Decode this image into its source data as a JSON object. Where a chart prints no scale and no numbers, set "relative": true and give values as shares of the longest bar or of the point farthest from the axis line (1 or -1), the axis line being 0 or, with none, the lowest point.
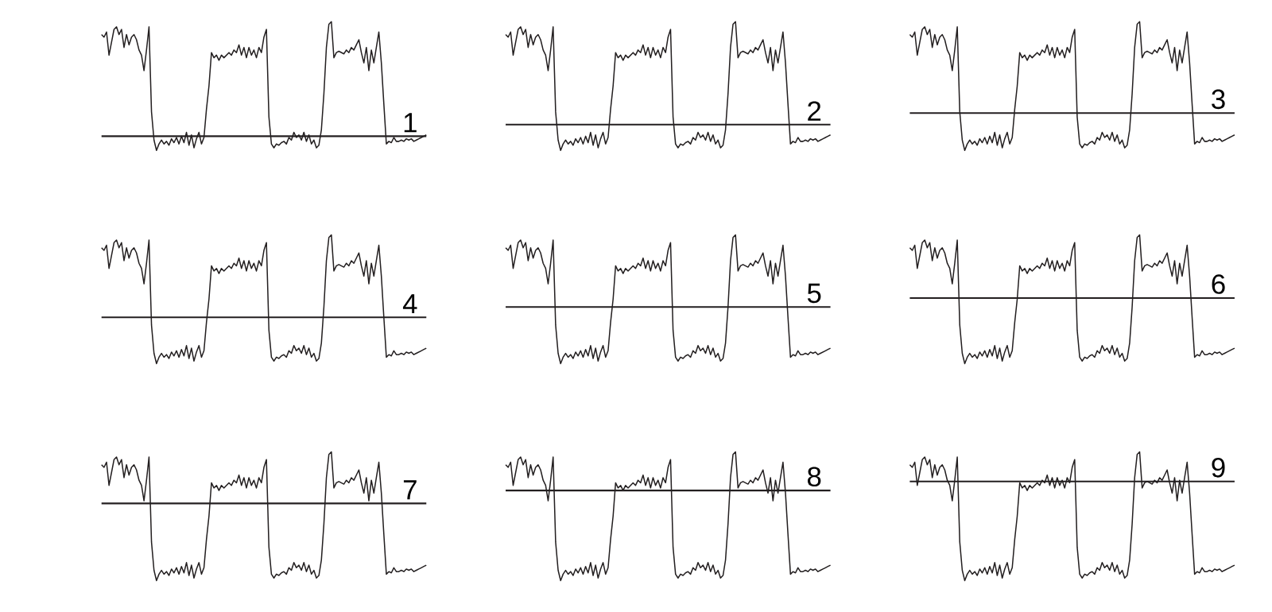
{
  "chart_data": [
    {
      "type": "line",
      "title": "1",
      "relative": true,
      "categories": [
        null,
        null,
        null,
        null,
        null,
        null,
        null,
        null,
        null,
        null,
        null,
        null,
        null,
        null,
        null,
        null,
        null,
        null,
        null,
        null,
        null,
        null,
        null,
        null,
        null,
        null,
        null,
        null,
        null,
        null,
        null,
        null,
        null,
        null,
        null,
        null,
        null,
        null,
        null,
        null,
        null,
        null,
        null,
        null,
        null,
        null,
        null,
        null,
        null,
        null,
        null,
        null,
        null,
        null,
        null,
        null,
        null,
        null,
        null,
        null,
        null,
        null,
        null,
        null,
        null,
        null,
        null,
        null,
        null,
        null,
        null,
        null,
        null,
        null,
        null,
        null,
        null,
        null,
        null,
        null,
        null,
        null,
        null,
        null,
        null,
        null,
        null,
        null,
        null,
        null,
        null,
        null,
        null,
        null,
        null,
        null,
        null,
        null,
        null,
        null,
        null,
        null,
        null,
        null,
        null,
        null,
        null,
        null,
        null,
        null,
        null,
        null,
        null,
        null,
        null,
        null,
        null,
        null,
        null,
        null,
        null,
        null,
        null,
        null,
        null,
        null,
        null,
        null,
        null,
        null,
        null
      ],
      "color": "#231f20",
      "values": [
        0.9,
        0.88,
        0.92,
        0.74,
        0.84,
        0.94,
        0.96,
        0.9,
        0.94,
        0.8,
        0.9,
        0.82,
        0.88,
        0.9,
        0.86,
        0.78,
        0.74,
        0.62,
        0.78,
        0.96,
        0.3,
        0.08,
        0.0,
        0.05,
        0.08,
        0.05,
        0.07,
        0.04,
        0.09,
        0.06,
        0.1,
        0.05,
        0.11,
        0.06,
        0.14,
        0.04,
        0.12,
        0.02,
        0.09,
        0.14,
        0.05,
        0.1,
        0.32,
        0.5,
        0.76,
        0.72,
        0.74,
        0.7,
        0.74,
        0.72,
        0.74,
        0.76,
        0.74,
        0.78,
        0.76,
        0.82,
        0.74,
        0.8,
        0.72,
        0.8,
        0.74,
        0.78,
        0.72,
        0.8,
        0.76,
        0.88,
        0.94,
        0.26,
        0.05,
        0.02,
        0.05,
        0.04,
        0.06,
        0.07,
        0.05,
        0.1,
        0.08,
        0.14,
        0.1,
        0.12,
        0.08,
        0.14,
        0.07,
        0.12,
        0.05,
        0.08,
        0.02,
        0.04,
        0.16,
        0.44,
        0.8,
        0.98,
        1.0,
        0.72,
        0.76,
        0.77,
        0.76,
        0.75,
        0.78,
        0.76,
        0.8,
        0.78,
        0.82,
        0.86,
        0.76,
        0.68,
        0.8,
        0.62,
        0.78,
        0.68,
        0.8,
        0.92,
        0.68,
        0.36,
        0.05,
        0.07,
        0.06,
        0.1,
        0.07,
        0.07,
        0.08,
        0.07,
        0.09,
        0.08,
        0.09,
        0.07,
        0.08,
        0.09,
        0.1,
        0.11,
        0.12
      ],
      "ref_lines": [
        {
          "axis": "y",
          "value": 0.11,
          "color": "#231f20"
        }
      ]
    },
    {
      "type": "line",
      "title": "2",
      "relative": true,
      "categories": [
        null,
        null,
        null,
        null,
        null,
        null,
        null,
        null,
        null,
        null,
        null,
        null,
        null,
        null,
        null,
        null,
        null,
        null,
        null,
        null,
        null,
        null,
        null,
        null,
        null,
        null,
        null,
        null,
        null,
        null,
        null,
        null,
        null,
        null,
        null,
        null,
        null,
        null,
        null,
        null,
        null,
        null,
        null,
        null,
        null,
        null,
        null,
        null,
        null,
        null,
        null,
        null,
        null,
        null,
        null,
        null,
        null,
        null,
        null,
        null,
        null,
        null,
        null,
        null,
        null,
        null,
        null,
        null,
        null,
        null,
        null,
        null,
        null,
        null,
        null,
        null,
        null,
        null,
        null,
        null,
        null,
        null,
        null,
        null,
        null,
        null,
        null,
        null,
        null,
        null,
        null,
        null,
        null,
        null,
        null,
        null,
        null,
        null,
        null,
        null,
        null,
        null,
        null,
        null,
        null,
        null,
        null,
        null,
        null,
        null,
        null,
        null,
        null,
        null,
        null,
        null,
        null,
        null,
        null,
        null,
        null,
        null,
        null,
        null,
        null,
        null,
        null,
        null,
        null,
        null,
        null
      ],
      "color": "#231f20",
      "values": [
        0.9,
        0.88,
        0.92,
        0.74,
        0.84,
        0.94,
        0.96,
        0.9,
        0.94,
        0.8,
        0.9,
        0.82,
        0.88,
        0.9,
        0.86,
        0.78,
        0.74,
        0.62,
        0.78,
        0.96,
        0.3,
        0.08,
        0.0,
        0.05,
        0.08,
        0.05,
        0.07,
        0.04,
        0.09,
        0.06,
        0.1,
        0.05,
        0.11,
        0.06,
        0.14,
        0.04,
        0.12,
        0.02,
        0.09,
        0.14,
        0.05,
        0.1,
        0.32,
        0.5,
        0.76,
        0.72,
        0.74,
        0.7,
        0.74,
        0.72,
        0.74,
        0.76,
        0.74,
        0.78,
        0.76,
        0.82,
        0.74,
        0.8,
        0.72,
        0.8,
        0.74,
        0.78,
        0.72,
        0.8,
        0.76,
        0.88,
        0.94,
        0.26,
        0.05,
        0.02,
        0.05,
        0.04,
        0.06,
        0.07,
        0.05,
        0.1,
        0.08,
        0.14,
        0.1,
        0.12,
        0.08,
        0.14,
        0.07,
        0.12,
        0.05,
        0.08,
        0.02,
        0.04,
        0.16,
        0.44,
        0.8,
        0.98,
        1.0,
        0.72,
        0.76,
        0.77,
        0.76,
        0.75,
        0.78,
        0.76,
        0.8,
        0.78,
        0.82,
        0.86,
        0.76,
        0.68,
        0.8,
        0.62,
        0.78,
        0.68,
        0.8,
        0.92,
        0.68,
        0.36,
        0.05,
        0.07,
        0.06,
        0.1,
        0.07,
        0.07,
        0.08,
        0.07,
        0.09,
        0.08,
        0.09,
        0.07,
        0.08,
        0.09,
        0.1,
        0.11,
        0.12
      ],
      "ref_lines": [
        {
          "axis": "y",
          "value": 0.2,
          "color": "#231f20"
        }
      ]
    },
    {
      "type": "line",
      "title": "3",
      "relative": true,
      "categories": [
        null,
        null,
        null,
        null,
        null,
        null,
        null,
        null,
        null,
        null,
        null,
        null,
        null,
        null,
        null,
        null,
        null,
        null,
        null,
        null,
        null,
        null,
        null,
        null,
        null,
        null,
        null,
        null,
        null,
        null,
        null,
        null,
        null,
        null,
        null,
        null,
        null,
        null,
        null,
        null,
        null,
        null,
        null,
        null,
        null,
        null,
        null,
        null,
        null,
        null,
        null,
        null,
        null,
        null,
        null,
        null,
        null,
        null,
        null,
        null,
        null,
        null,
        null,
        null,
        null,
        null,
        null,
        null,
        null,
        null,
        null,
        null,
        null,
        null,
        null,
        null,
        null,
        null,
        null,
        null,
        null,
        null,
        null,
        null,
        null,
        null,
        null,
        null,
        null,
        null,
        null,
        null,
        null,
        null,
        null,
        null,
        null,
        null,
        null,
        null,
        null,
        null,
        null,
        null,
        null,
        null,
        null,
        null,
        null,
        null,
        null,
        null,
        null,
        null,
        null,
        null,
        null,
        null,
        null,
        null,
        null,
        null,
        null,
        null,
        null,
        null,
        null,
        null,
        null,
        null,
        null
      ],
      "color": "#231f20",
      "values": [
        0.9,
        0.88,
        0.92,
        0.74,
        0.84,
        0.94,
        0.96,
        0.9,
        0.94,
        0.8,
        0.9,
        0.82,
        0.88,
        0.9,
        0.86,
        0.78,
        0.74,
        0.62,
        0.78,
        0.96,
        0.3,
        0.08,
        0.0,
        0.05,
        0.08,
        0.05,
        0.07,
        0.04,
        0.09,
        0.06,
        0.1,
        0.05,
        0.11,
        0.06,
        0.14,
        0.04,
        0.12,
        0.02,
        0.09,
        0.14,
        0.05,
        0.1,
        0.32,
        0.5,
        0.76,
        0.72,
        0.74,
        0.7,
        0.74,
        0.72,
        0.74,
        0.76,
        0.74,
        0.78,
        0.76,
        0.82,
        0.74,
        0.8,
        0.72,
        0.8,
        0.74,
        0.78,
        0.72,
        0.8,
        0.76,
        0.88,
        0.94,
        0.26,
        0.05,
        0.02,
        0.05,
        0.04,
        0.06,
        0.07,
        0.05,
        0.1,
        0.08,
        0.14,
        0.1,
        0.12,
        0.08,
        0.14,
        0.07,
        0.12,
        0.05,
        0.08,
        0.02,
        0.04,
        0.16,
        0.44,
        0.8,
        0.98,
        1.0,
        0.72,
        0.76,
        0.77,
        0.76,
        0.75,
        0.78,
        0.76,
        0.8,
        0.78,
        0.82,
        0.86,
        0.76,
        0.68,
        0.8,
        0.62,
        0.78,
        0.68,
        0.8,
        0.92,
        0.68,
        0.36,
        0.05,
        0.07,
        0.06,
        0.1,
        0.07,
        0.07,
        0.08,
        0.07,
        0.09,
        0.08,
        0.09,
        0.07,
        0.08,
        0.09,
        0.1,
        0.11,
        0.12
      ],
      "ref_lines": [
        {
          "axis": "y",
          "value": 0.29,
          "color": "#231f20"
        }
      ]
    },
    {
      "type": "line",
      "title": "4",
      "relative": true,
      "categories": [
        null,
        null,
        null,
        null,
        null,
        null,
        null,
        null,
        null,
        null,
        null,
        null,
        null,
        null,
        null,
        null,
        null,
        null,
        null,
        null,
        null,
        null,
        null,
        null,
        null,
        null,
        null,
        null,
        null,
        null,
        null,
        null,
        null,
        null,
        null,
        null,
        null,
        null,
        null,
        null,
        null,
        null,
        null,
        null,
        null,
        null,
        null,
        null,
        null,
        null,
        null,
        null,
        null,
        null,
        null,
        null,
        null,
        null,
        null,
        null,
        null,
        null,
        null,
        null,
        null,
        null,
        null,
        null,
        null,
        null,
        null,
        null,
        null,
        null,
        null,
        null,
        null,
        null,
        null,
        null,
        null,
        null,
        null,
        null,
        null,
        null,
        null,
        null,
        null,
        null,
        null,
        null,
        null,
        null,
        null,
        null,
        null,
        null,
        null,
        null,
        null,
        null,
        null,
        null,
        null,
        null,
        null,
        null,
        null,
        null,
        null,
        null,
        null,
        null,
        null,
        null,
        null,
        null,
        null,
        null,
        null,
        null,
        null,
        null,
        null,
        null,
        null,
        null,
        null,
        null,
        null
      ],
      "color": "#231f20",
      "values": [
        0.9,
        0.88,
        0.92,
        0.74,
        0.84,
        0.94,
        0.96,
        0.9,
        0.94,
        0.8,
        0.9,
        0.82,
        0.88,
        0.9,
        0.86,
        0.78,
        0.74,
        0.62,
        0.78,
        0.96,
        0.3,
        0.08,
        0.0,
        0.05,
        0.08,
        0.05,
        0.07,
        0.04,
        0.09,
        0.06,
        0.1,
        0.05,
        0.11,
        0.06,
        0.14,
        0.04,
        0.12,
        0.02,
        0.09,
        0.14,
        0.05,
        0.1,
        0.32,
        0.5,
        0.76,
        0.72,
        0.74,
        0.7,
        0.74,
        0.72,
        0.74,
        0.76,
        0.74,
        0.78,
        0.76,
        0.82,
        0.74,
        0.8,
        0.72,
        0.8,
        0.74,
        0.78,
        0.72,
        0.8,
        0.76,
        0.88,
        0.94,
        0.26,
        0.05,
        0.02,
        0.05,
        0.04,
        0.06,
        0.07,
        0.05,
        0.1,
        0.08,
        0.14,
        0.1,
        0.12,
        0.08,
        0.14,
        0.07,
        0.12,
        0.05,
        0.08,
        0.02,
        0.04,
        0.16,
        0.44,
        0.8,
        0.98,
        1.0,
        0.72,
        0.76,
        0.77,
        0.76,
        0.75,
        0.78,
        0.76,
        0.8,
        0.78,
        0.82,
        0.86,
        0.76,
        0.68,
        0.8,
        0.62,
        0.78,
        0.68,
        0.8,
        0.92,
        0.68,
        0.36,
        0.05,
        0.07,
        0.06,
        0.1,
        0.07,
        0.07,
        0.08,
        0.07,
        0.09,
        0.08,
        0.09,
        0.07,
        0.08,
        0.09,
        0.1,
        0.11,
        0.12
      ],
      "ref_lines": [
        {
          "axis": "y",
          "value": 0.36,
          "color": "#231f20"
        }
      ]
    },
    {
      "type": "line",
      "title": "5",
      "relative": true,
      "categories": [
        null,
        null,
        null,
        null,
        null,
        null,
        null,
        null,
        null,
        null,
        null,
        null,
        null,
        null,
        null,
        null,
        null,
        null,
        null,
        null,
        null,
        null,
        null,
        null,
        null,
        null,
        null,
        null,
        null,
        null,
        null,
        null,
        null,
        null,
        null,
        null,
        null,
        null,
        null,
        null,
        null,
        null,
        null,
        null,
        null,
        null,
        null,
        null,
        null,
        null,
        null,
        null,
        null,
        null,
        null,
        null,
        null,
        null,
        null,
        null,
        null,
        null,
        null,
        null,
        null,
        null,
        null,
        null,
        null,
        null,
        null,
        null,
        null,
        null,
        null,
        null,
        null,
        null,
        null,
        null,
        null,
        null,
        null,
        null,
        null,
        null,
        null,
        null,
        null,
        null,
        null,
        null,
        null,
        null,
        null,
        null,
        null,
        null,
        null,
        null,
        null,
        null,
        null,
        null,
        null,
        null,
        null,
        null,
        null,
        null,
        null,
        null,
        null,
        null,
        null,
        null,
        null,
        null,
        null,
        null,
        null,
        null,
        null,
        null,
        null,
        null,
        null,
        null,
        null,
        null,
        null
      ],
      "color": "#231f20",
      "values": [
        0.9,
        0.88,
        0.92,
        0.74,
        0.84,
        0.94,
        0.96,
        0.9,
        0.94,
        0.8,
        0.9,
        0.82,
        0.88,
        0.9,
        0.86,
        0.78,
        0.74,
        0.62,
        0.78,
        0.96,
        0.3,
        0.08,
        0.0,
        0.05,
        0.08,
        0.05,
        0.07,
        0.04,
        0.09,
        0.06,
        0.1,
        0.05,
        0.11,
        0.06,
        0.14,
        0.04,
        0.12,
        0.02,
        0.09,
        0.14,
        0.05,
        0.1,
        0.32,
        0.5,
        0.76,
        0.72,
        0.74,
        0.7,
        0.74,
        0.72,
        0.74,
        0.76,
        0.74,
        0.78,
        0.76,
        0.82,
        0.74,
        0.8,
        0.72,
        0.8,
        0.74,
        0.78,
        0.72,
        0.8,
        0.76,
        0.88,
        0.94,
        0.26,
        0.05,
        0.02,
        0.05,
        0.04,
        0.06,
        0.07,
        0.05,
        0.1,
        0.08,
        0.14,
        0.1,
        0.12,
        0.08,
        0.14,
        0.07,
        0.12,
        0.05,
        0.08,
        0.02,
        0.04,
        0.16,
        0.44,
        0.8,
        0.98,
        1.0,
        0.72,
        0.76,
        0.77,
        0.76,
        0.75,
        0.78,
        0.76,
        0.8,
        0.78,
        0.82,
        0.86,
        0.76,
        0.68,
        0.8,
        0.62,
        0.78,
        0.68,
        0.8,
        0.92,
        0.68,
        0.36,
        0.05,
        0.07,
        0.06,
        0.1,
        0.07,
        0.07,
        0.08,
        0.07,
        0.09,
        0.08,
        0.09,
        0.07,
        0.08,
        0.09,
        0.1,
        0.11,
        0.12
      ],
      "ref_lines": [
        {
          "axis": "y",
          "value": 0.44,
          "color": "#231f20"
        }
      ]
    },
    {
      "type": "line",
      "title": "6",
      "relative": true,
      "categories": [
        null,
        null,
        null,
        null,
        null,
        null,
        null,
        null,
        null,
        null,
        null,
        null,
        null,
        null,
        null,
        null,
        null,
        null,
        null,
        null,
        null,
        null,
        null,
        null,
        null,
        null,
        null,
        null,
        null,
        null,
        null,
        null,
        null,
        null,
        null,
        null,
        null,
        null,
        null,
        null,
        null,
        null,
        null,
        null,
        null,
        null,
        null,
        null,
        null,
        null,
        null,
        null,
        null,
        null,
        null,
        null,
        null,
        null,
        null,
        null,
        null,
        null,
        null,
        null,
        null,
        null,
        null,
        null,
        null,
        null,
        null,
        null,
        null,
        null,
        null,
        null,
        null,
        null,
        null,
        null,
        null,
        null,
        null,
        null,
        null,
        null,
        null,
        null,
        null,
        null,
        null,
        null,
        null,
        null,
        null,
        null,
        null,
        null,
        null,
        null,
        null,
        null,
        null,
        null,
        null,
        null,
        null,
        null,
        null,
        null,
        null,
        null,
        null,
        null,
        null,
        null,
        null,
        null,
        null,
        null,
        null,
        null,
        null,
        null,
        null,
        null,
        null,
        null,
        null,
        null,
        null
      ],
      "color": "#231f20",
      "values": [
        0.9,
        0.88,
        0.92,
        0.74,
        0.84,
        0.94,
        0.96,
        0.9,
        0.94,
        0.8,
        0.9,
        0.82,
        0.88,
        0.9,
        0.86,
        0.78,
        0.74,
        0.62,
        0.78,
        0.96,
        0.3,
        0.08,
        0.0,
        0.05,
        0.08,
        0.05,
        0.07,
        0.04,
        0.09,
        0.06,
        0.1,
        0.05,
        0.11,
        0.06,
        0.14,
        0.04,
        0.12,
        0.02,
        0.09,
        0.14,
        0.05,
        0.1,
        0.32,
        0.5,
        0.76,
        0.72,
        0.74,
        0.7,
        0.74,
        0.72,
        0.74,
        0.76,
        0.74,
        0.78,
        0.76,
        0.82,
        0.74,
        0.8,
        0.72,
        0.8,
        0.74,
        0.78,
        0.72,
        0.8,
        0.76,
        0.88,
        0.94,
        0.26,
        0.05,
        0.02,
        0.05,
        0.04,
        0.06,
        0.07,
        0.05,
        0.1,
        0.08,
        0.14,
        0.1,
        0.12,
        0.08,
        0.14,
        0.07,
        0.12,
        0.05,
        0.08,
        0.02,
        0.04,
        0.16,
        0.44,
        0.8,
        0.98,
        1.0,
        0.72,
        0.76,
        0.77,
        0.76,
        0.75,
        0.78,
        0.76,
        0.8,
        0.78,
        0.82,
        0.86,
        0.76,
        0.68,
        0.8,
        0.62,
        0.78,
        0.68,
        0.8,
        0.92,
        0.68,
        0.36,
        0.05,
        0.07,
        0.06,
        0.1,
        0.07,
        0.07,
        0.08,
        0.07,
        0.09,
        0.08,
        0.09,
        0.07,
        0.08,
        0.09,
        0.1,
        0.11,
        0.12
      ],
      "ref_lines": [
        {
          "axis": "y",
          "value": 0.51,
          "color": "#231f20"
        }
      ]
    },
    {
      "type": "line",
      "title": "7",
      "relative": true,
      "categories": [
        null,
        null,
        null,
        null,
        null,
        null,
        null,
        null,
        null,
        null,
        null,
        null,
        null,
        null,
        null,
        null,
        null,
        null,
        null,
        null,
        null,
        null,
        null,
        null,
        null,
        null,
        null,
        null,
        null,
        null,
        null,
        null,
        null,
        null,
        null,
        null,
        null,
        null,
        null,
        null,
        null,
        null,
        null,
        null,
        null,
        null,
        null,
        null,
        null,
        null,
        null,
        null,
        null,
        null,
        null,
        null,
        null,
        null,
        null,
        null,
        null,
        null,
        null,
        null,
        null,
        null,
        null,
        null,
        null,
        null,
        null,
        null,
        null,
        null,
        null,
        null,
        null,
        null,
        null,
        null,
        null,
        null,
        null,
        null,
        null,
        null,
        null,
        null,
        null,
        null,
        null,
        null,
        null,
        null,
        null,
        null,
        null,
        null,
        null,
        null,
        null,
        null,
        null,
        null,
        null,
        null,
        null,
        null,
        null,
        null,
        null,
        null,
        null,
        null,
        null,
        null,
        null,
        null,
        null,
        null,
        null,
        null,
        null,
        null,
        null,
        null,
        null,
        null,
        null,
        null,
        null
      ],
      "color": "#231f20",
      "values": [
        0.9,
        0.88,
        0.92,
        0.74,
        0.84,
        0.94,
        0.96,
        0.9,
        0.94,
        0.8,
        0.9,
        0.82,
        0.88,
        0.9,
        0.86,
        0.78,
        0.74,
        0.62,
        0.78,
        0.96,
        0.3,
        0.08,
        0.0,
        0.05,
        0.08,
        0.05,
        0.07,
        0.04,
        0.09,
        0.06,
        0.1,
        0.05,
        0.11,
        0.06,
        0.14,
        0.04,
        0.12,
        0.02,
        0.09,
        0.14,
        0.05,
        0.1,
        0.32,
        0.5,
        0.76,
        0.72,
        0.74,
        0.7,
        0.74,
        0.72,
        0.74,
        0.76,
        0.74,
        0.78,
        0.76,
        0.82,
        0.74,
        0.8,
        0.72,
        0.8,
        0.74,
        0.78,
        0.72,
        0.8,
        0.76,
        0.88,
        0.94,
        0.26,
        0.05,
        0.02,
        0.05,
        0.04,
        0.06,
        0.07,
        0.05,
        0.1,
        0.08,
        0.14,
        0.1,
        0.12,
        0.08,
        0.14,
        0.07,
        0.12,
        0.05,
        0.08,
        0.02,
        0.04,
        0.16,
        0.44,
        0.8,
        0.98,
        1.0,
        0.72,
        0.76,
        0.77,
        0.76,
        0.75,
        0.78,
        0.76,
        0.8,
        0.78,
        0.82,
        0.86,
        0.76,
        0.68,
        0.8,
        0.62,
        0.78,
        0.68,
        0.8,
        0.92,
        0.68,
        0.36,
        0.05,
        0.07,
        0.06,
        0.1,
        0.07,
        0.07,
        0.08,
        0.07,
        0.09,
        0.08,
        0.09,
        0.07,
        0.08,
        0.09,
        0.1,
        0.11,
        0.12
      ],
      "ref_lines": [
        {
          "axis": "y",
          "value": 0.6,
          "color": "#231f20"
        }
      ]
    },
    {
      "type": "line",
      "title": "8",
      "relative": true,
      "categories": [
        null,
        null,
        null,
        null,
        null,
        null,
        null,
        null,
        null,
        null,
        null,
        null,
        null,
        null,
        null,
        null,
        null,
        null,
        null,
        null,
        null,
        null,
        null,
        null,
        null,
        null,
        null,
        null,
        null,
        null,
        null,
        null,
        null,
        null,
        null,
        null,
        null,
        null,
        null,
        null,
        null,
        null,
        null,
        null,
        null,
        null,
        null,
        null,
        null,
        null,
        null,
        null,
        null,
        null,
        null,
        null,
        null,
        null,
        null,
        null,
        null,
        null,
        null,
        null,
        null,
        null,
        null,
        null,
        null,
        null,
        null,
        null,
        null,
        null,
        null,
        null,
        null,
        null,
        null,
        null,
        null,
        null,
        null,
        null,
        null,
        null,
        null,
        null,
        null,
        null,
        null,
        null,
        null,
        null,
        null,
        null,
        null,
        null,
        null,
        null,
        null,
        null,
        null,
        null,
        null,
        null,
        null,
        null,
        null,
        null,
        null,
        null,
        null,
        null,
        null,
        null,
        null,
        null,
        null,
        null,
        null,
        null,
        null,
        null,
        null,
        null,
        null,
        null,
        null,
        null,
        null
      ],
      "color": "#231f20",
      "values": [
        0.9,
        0.88,
        0.92,
        0.74,
        0.84,
        0.94,
        0.96,
        0.9,
        0.94,
        0.8,
        0.9,
        0.82,
        0.88,
        0.9,
        0.86,
        0.78,
        0.74,
        0.62,
        0.78,
        0.96,
        0.3,
        0.08,
        0.0,
        0.05,
        0.08,
        0.05,
        0.07,
        0.04,
        0.09,
        0.06,
        0.1,
        0.05,
        0.11,
        0.06,
        0.14,
        0.04,
        0.12,
        0.02,
        0.09,
        0.14,
        0.05,
        0.1,
        0.32,
        0.5,
        0.76,
        0.72,
        0.74,
        0.7,
        0.74,
        0.72,
        0.74,
        0.76,
        0.74,
        0.78,
        0.76,
        0.82,
        0.74,
        0.8,
        0.72,
        0.8,
        0.74,
        0.78,
        0.72,
        0.8,
        0.76,
        0.88,
        0.94,
        0.26,
        0.05,
        0.02,
        0.05,
        0.04,
        0.06,
        0.07,
        0.05,
        0.1,
        0.08,
        0.14,
        0.1,
        0.12,
        0.08,
        0.14,
        0.07,
        0.12,
        0.05,
        0.08,
        0.02,
        0.04,
        0.16,
        0.44,
        0.8,
        0.98,
        1.0,
        0.72,
        0.76,
        0.77,
        0.76,
        0.75,
        0.78,
        0.76,
        0.8,
        0.78,
        0.82,
        0.86,
        0.76,
        0.68,
        0.8,
        0.62,
        0.78,
        0.68,
        0.8,
        0.92,
        0.68,
        0.36,
        0.05,
        0.07,
        0.06,
        0.1,
        0.07,
        0.07,
        0.08,
        0.07,
        0.09,
        0.08,
        0.09,
        0.07,
        0.08,
        0.09,
        0.1,
        0.11,
        0.12
      ],
      "ref_lines": [
        {
          "axis": "y",
          "value": 0.7,
          "color": "#231f20"
        }
      ]
    },
    {
      "type": "line",
      "title": "9",
      "relative": true,
      "categories": [
        null,
        null,
        null,
        null,
        null,
        null,
        null,
        null,
        null,
        null,
        null,
        null,
        null,
        null,
        null,
        null,
        null,
        null,
        null,
        null,
        null,
        null,
        null,
        null,
        null,
        null,
        null,
        null,
        null,
        null,
        null,
        null,
        null,
        null,
        null,
        null,
        null,
        null,
        null,
        null,
        null,
        null,
        null,
        null,
        null,
        null,
        null,
        null,
        null,
        null,
        null,
        null,
        null,
        null,
        null,
        null,
        null,
        null,
        null,
        null,
        null,
        null,
        null,
        null,
        null,
        null,
        null,
        null,
        null,
        null,
        null,
        null,
        null,
        null,
        null,
        null,
        null,
        null,
        null,
        null,
        null,
        null,
        null,
        null,
        null,
        null,
        null,
        null,
        null,
        null,
        null,
        null,
        null,
        null,
        null,
        null,
        null,
        null,
        null,
        null,
        null,
        null,
        null,
        null,
        null,
        null,
        null,
        null,
        null,
        null,
        null,
        null,
        null,
        null,
        null,
        null,
        null,
        null,
        null,
        null,
        null,
        null,
        null,
        null,
        null,
        null,
        null,
        null,
        null,
        null,
        null
      ],
      "color": "#231f20",
      "values": [
        0.9,
        0.88,
        0.92,
        0.74,
        0.84,
        0.94,
        0.96,
        0.9,
        0.94,
        0.8,
        0.9,
        0.82,
        0.88,
        0.9,
        0.86,
        0.78,
        0.74,
        0.62,
        0.78,
        0.96,
        0.3,
        0.08,
        0.0,
        0.05,
        0.08,
        0.05,
        0.07,
        0.04,
        0.09,
        0.06,
        0.1,
        0.05,
        0.11,
        0.06,
        0.14,
        0.04,
        0.12,
        0.02,
        0.09,
        0.14,
        0.05,
        0.1,
        0.32,
        0.5,
        0.76,
        0.72,
        0.74,
        0.7,
        0.74,
        0.72,
        0.74,
        0.76,
        0.74,
        0.78,
        0.76,
        0.82,
        0.74,
        0.8,
        0.72,
        0.8,
        0.74,
        0.78,
        0.72,
        0.8,
        0.76,
        0.88,
        0.94,
        0.26,
        0.05,
        0.02,
        0.05,
        0.04,
        0.06,
        0.07,
        0.05,
        0.1,
        0.08,
        0.14,
        0.1,
        0.12,
        0.08,
        0.14,
        0.07,
        0.12,
        0.05,
        0.08,
        0.02,
        0.04,
        0.16,
        0.44,
        0.8,
        0.98,
        1.0,
        0.72,
        0.76,
        0.77,
        0.76,
        0.75,
        0.78,
        0.76,
        0.8,
        0.78,
        0.82,
        0.86,
        0.76,
        0.68,
        0.8,
        0.62,
        0.78,
        0.68,
        0.8,
        0.92,
        0.68,
        0.36,
        0.05,
        0.07,
        0.06,
        0.1,
        0.07,
        0.07,
        0.08,
        0.07,
        0.09,
        0.08,
        0.09,
        0.07,
        0.08,
        0.09,
        0.1,
        0.11,
        0.12
      ],
      "ref_lines": [
        {
          "axis": "y",
          "value": 0.77,
          "color": "#231f20"
        }
      ]
    }
  ]
}
